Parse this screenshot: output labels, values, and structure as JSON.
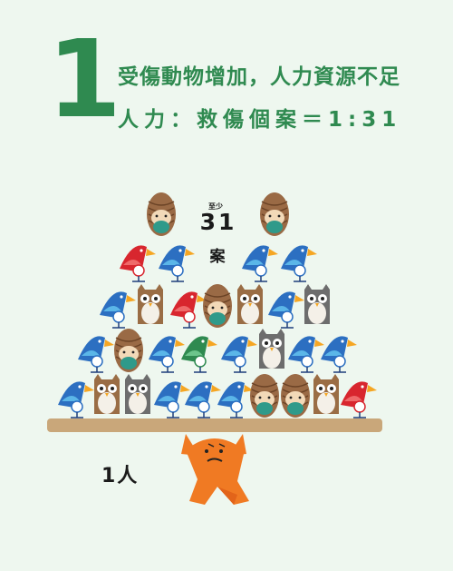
{
  "header": {
    "number": "1",
    "line1": "受傷動物增加，人力資源不足",
    "line2": "人力：救傷個案＝1:31"
  },
  "illustration": {
    "cases_qualifier": "至少",
    "cases_number": "31",
    "cases_unit": "案",
    "person_label": "1人"
  },
  "colors": {
    "accent_green": "#2f8a50",
    "background": "#eef7ef",
    "plank": "#c9a77a",
    "person_orange": "#f07a23"
  }
}
